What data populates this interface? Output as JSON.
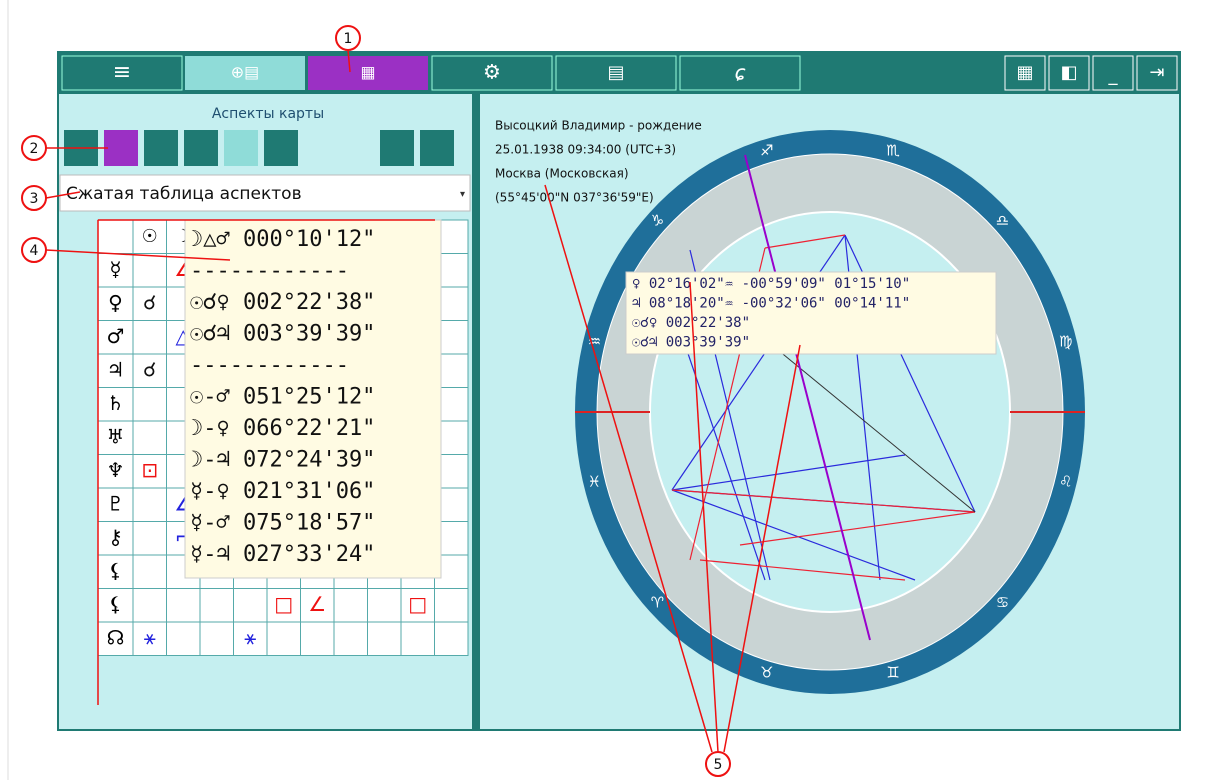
{
  "panel_title": "Аспекты карты",
  "dropdown": "Сжатая таблица аспектов",
  "callouts": [
    "1",
    "2",
    "3",
    "4",
    "5"
  ],
  "table": {
    "columns": [
      "☉",
      "☽"
    ],
    "row_labels": [
      "☿",
      "♀",
      "♂",
      "♃",
      "♄",
      "♅",
      "♆",
      "♇",
      "⚷",
      "⚸",
      "⚸",
      "☊"
    ],
    "cells": [
      [
        {
          "col": 2,
          "text": "∠",
          "color": "red"
        }
      ],
      [
        {
          "col": 1,
          "text": "☌",
          "color": "black"
        }
      ],
      [
        {
          "col": 2,
          "text": "△",
          "color": "blue"
        }
      ],
      [
        {
          "col": 1,
          "text": "☌",
          "color": "black"
        }
      ],
      [],
      [],
      [
        {
          "col": 1,
          "text": "⊡",
          "color": "red"
        }
      ],
      [
        {
          "col": 2,
          "text": "∠",
          "color": "blue"
        }
      ],
      [
        {
          "col": 2,
          "text": "⌐",
          "color": "blue"
        }
      ],
      [
        {
          "col": 3,
          "text": "⚹",
          "color": "blue"
        },
        {
          "col": 8,
          "text": "⚹",
          "color": "blue"
        }
      ],
      [
        {
          "col": 5,
          "text": "□",
          "color": "red"
        },
        {
          "col": 6,
          "text": "∠",
          "color": "red"
        },
        {
          "col": 9,
          "text": "□",
          "color": "red"
        }
      ],
      [
        {
          "col": 1,
          "text": "⚹",
          "color": "blue"
        },
        {
          "col": 4,
          "text": "⚹",
          "color": "blue"
        }
      ]
    ]
  },
  "table_tooltip": [
    "☽△♂ 000°10'12\"",
    "------------",
    "☉☌♀ 002°22'38\"",
    "☉☌♃ 003°39'39\"",
    "------------",
    "☉-♂ 051°25'12\"",
    "☽-♀ 066°22'21\"",
    "☽-♃ 072°24'39\"",
    "☿-♀ 021°31'06\"",
    "☿-♂ 075°18'57\"",
    "☿-♃ 027°33'24\""
  ],
  "chart_info": [
    "Высоцкий Владимир - рождение",
    "25.01.1938 09:34:00 (UTC+3)",
    "Москва (Московская)",
    "(55°45'00\"N 037°36'59\"E)"
  ],
  "chart_tooltip": [
    "♀ 02°16'02\"♒ -00°59'09\"   01°15'10\"",
    "♃ 08°18'20\"♒ -00°32'06\"   00°14'11\"",
    "☉☌♀ 002°22'38\"",
    "☉☌♃ 003°39'39\""
  ],
  "zodiac": [
    "♈",
    "♉",
    "♊",
    "♋",
    "♌",
    "♍",
    "♎",
    "♏",
    "♐",
    "♑",
    "♒",
    "♓"
  ]
}
